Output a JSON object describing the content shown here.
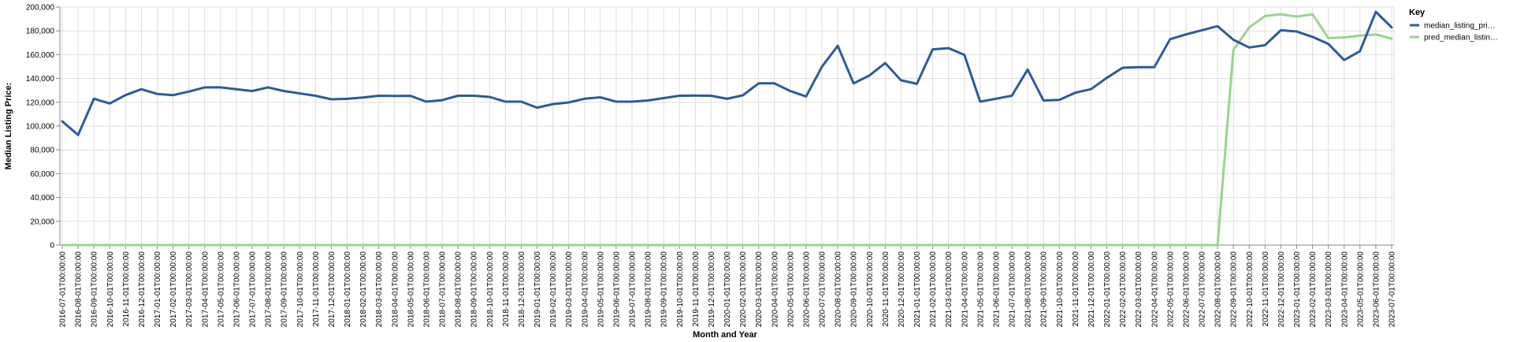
{
  "chart_data": {
    "type": "line",
    "xlabel": "Month and Year",
    "ylabel": "Median Listing Price:",
    "ylim": [
      0,
      200000
    ],
    "yticks": [
      "0",
      "20,000",
      "40,000",
      "60,000",
      "80,000",
      "100,000",
      "120,000",
      "140,000",
      "160,000",
      "180,000",
      "200,000"
    ],
    "grid": true,
    "legend": {
      "title": "Key",
      "placement": "right",
      "entries": [
        "median_listing_pri…",
        "pred_median_listin…"
      ]
    },
    "x": [
      "2016-07-01T00:00:00",
      "2016-08-01T00:00:00",
      "2016-09-01T00:00:00",
      "2016-10-01T00:00:00",
      "2016-11-01T00:00:00",
      "2016-12-01T00:00:00",
      "2017-01-01T00:00:00",
      "2017-02-01T00:00:00",
      "2017-03-01T00:00:00",
      "2017-04-01T00:00:00",
      "2017-05-01T00:00:00",
      "2017-06-01T00:00:00",
      "2017-07-01T00:00:00",
      "2017-08-01T00:00:00",
      "2017-09-01T00:00:00",
      "2017-10-01T00:00:00",
      "2017-11-01T00:00:00",
      "2017-12-01T00:00:00",
      "2018-01-01T00:00:00",
      "2018-02-01T00:00:00",
      "2018-03-01T00:00:00",
      "2018-04-01T00:00:00",
      "2018-05-01T00:00:00",
      "2018-06-01T00:00:00",
      "2018-07-01T00:00:00",
      "2018-08-01T00:00:00",
      "2018-09-01T00:00:00",
      "2018-10-01T00:00:00",
      "2018-11-01T00:00:00",
      "2018-12-01T00:00:00",
      "2019-01-01T00:00:00",
      "2019-02-01T00:00:00",
      "2019-03-01T00:00:00",
      "2019-04-01T00:00:00",
      "2019-05-01T00:00:00",
      "2019-06-01T00:00:00",
      "2019-07-01T00:00:00",
      "2019-08-01T00:00:00",
      "2019-09-01T00:00:00",
      "2019-10-01T00:00:00",
      "2019-11-01T00:00:00",
      "2019-12-01T00:00:00",
      "2020-01-01T00:00:00",
      "2020-02-01T00:00:00",
      "2020-03-01T00:00:00",
      "2020-04-01T00:00:00",
      "2020-05-01T00:00:00",
      "2020-06-01T00:00:00",
      "2020-07-01T00:00:00",
      "2020-08-01T00:00:00",
      "2020-09-01T00:00:00",
      "2020-10-01T00:00:00",
      "2020-11-01T00:00:00",
      "2020-12-01T00:00:00",
      "2021-01-01T00:00:00",
      "2021-02-01T00:00:00",
      "2021-03-01T00:00:00",
      "2021-04-01T00:00:00",
      "2021-05-01T00:00:00",
      "2021-06-01T00:00:00",
      "2021-07-01T00:00:00",
      "2021-08-01T00:00:00",
      "2021-09-01T00:00:00",
      "2021-10-01T00:00:00",
      "2021-11-01T00:00:00",
      "2021-12-01T00:00:00",
      "2022-01-01T00:00:00",
      "2022-02-01T00:00:00",
      "2022-03-01T00:00:00",
      "2022-04-01T00:00:00",
      "2022-05-01T00:00:00",
      "2022-06-01T00:00:00",
      "2022-07-01T00:00:00",
      "2022-08-01T00:00:00",
      "2022-09-01T00:00:00",
      "2022-10-01T00:00:00",
      "2022-11-01T00:00:00",
      "2022-12-01T00:00:00",
      "2023-01-01T00:00:00",
      "2023-02-01T00:00:00",
      "2023-03-01T00:00:00",
      "2023-04-01T00:00:00",
      "2023-05-01T00:00:00",
      "2023-06-01T00:00:00",
      "2023-07-01T00:00:00"
    ],
    "series": [
      {
        "name": "median_listing_pri…",
        "color": "#2c5a9e",
        "values": [
          104000,
          92500,
          123000,
          119000,
          126000,
          131000,
          127000,
          126000,
          129000,
          132500,
          132500,
          131000,
          129500,
          132500,
          129500,
          127500,
          125500,
          122500,
          122900,
          124000,
          125500,
          125300,
          125400,
          120500,
          121800,
          125500,
          125500,
          124500,
          120500,
          120500,
          115500,
          118500,
          119900,
          123000,
          124200,
          120500,
          120500,
          121500,
          123500,
          125500,
          125600,
          125500,
          122900,
          125800,
          135900,
          135900,
          129500,
          124900,
          149900,
          167500,
          135900,
          142500,
          153000,
          138500,
          135500,
          164500,
          165500,
          159900,
          120500,
          123000,
          125500,
          147500,
          121500,
          122000,
          128000,
          131000,
          140500,
          149000,
          149500,
          149500,
          173000,
          177000,
          180500,
          184000,
          172500,
          166000,
          168000,
          180500,
          179500,
          175000,
          169000,
          155500,
          163000,
          196000,
          183000
        ]
      },
      {
        "name": "pred_median_listin…",
        "color": "#98d48e",
        "values": [
          0,
          0,
          0,
          0,
          0,
          0,
          0,
          0,
          0,
          0,
          0,
          0,
          0,
          0,
          0,
          0,
          0,
          0,
          0,
          0,
          0,
          0,
          0,
          0,
          0,
          0,
          0,
          0,
          0,
          0,
          0,
          0,
          0,
          0,
          0,
          0,
          0,
          0,
          0,
          0,
          0,
          0,
          0,
          0,
          0,
          0,
          0,
          0,
          0,
          0,
          0,
          0,
          0,
          0,
          0,
          0,
          0,
          0,
          0,
          0,
          0,
          0,
          0,
          0,
          0,
          0,
          0,
          0,
          0,
          0,
          0,
          0,
          0,
          0,
          164000,
          183000,
          192500,
          194000,
          192000,
          194000,
          174000,
          174500,
          176000,
          177000,
          173500
        ]
      }
    ]
  }
}
